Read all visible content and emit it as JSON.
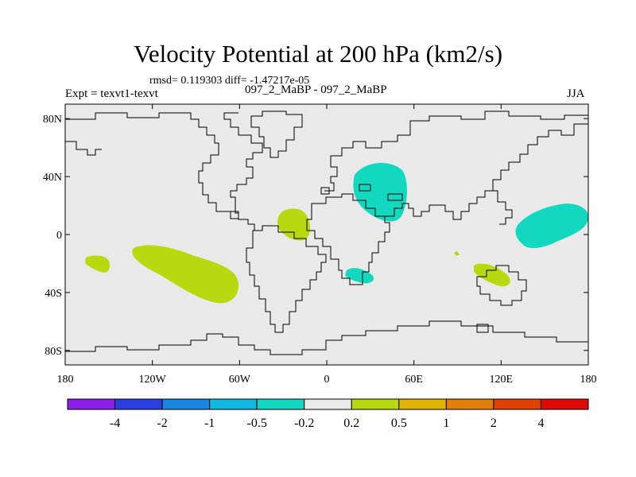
{
  "title": "Velocity Potential at 200 hPa (km2/s)",
  "stats": "rmsd= 0.119303 diff= -1.47217e-05",
  "left_label": "Expt = texvt1-texvt",
  "center_label": "097_2_MaBP - 097_2_MaBP",
  "right_label": "JJA",
  "lat_ticks": [
    "80N",
    "40N",
    "0",
    "40S",
    "80S"
  ],
  "lon_ticks": [
    "180",
    "120W",
    "60W",
    "0",
    "60E",
    "120E",
    "180"
  ],
  "colorbar": {
    "colors": [
      "#8a1ee6",
      "#2b3fe0",
      "#1a86e0",
      "#12b8e0",
      "#12d8c0",
      "#ececec",
      "#b8d810",
      "#e0b400",
      "#e07e08",
      "#e04000",
      "#e00808"
    ],
    "labels": [
      "-4",
      "-2",
      "-1",
      "-0.5",
      "-0.2",
      "0.2",
      "0.5",
      "1",
      "2",
      "4"
    ]
  },
  "colors": {
    "land_fill": "#e9e9e9",
    "positive": "#b8d810",
    "negative": "#12d8c0",
    "coast": "#000000"
  }
}
